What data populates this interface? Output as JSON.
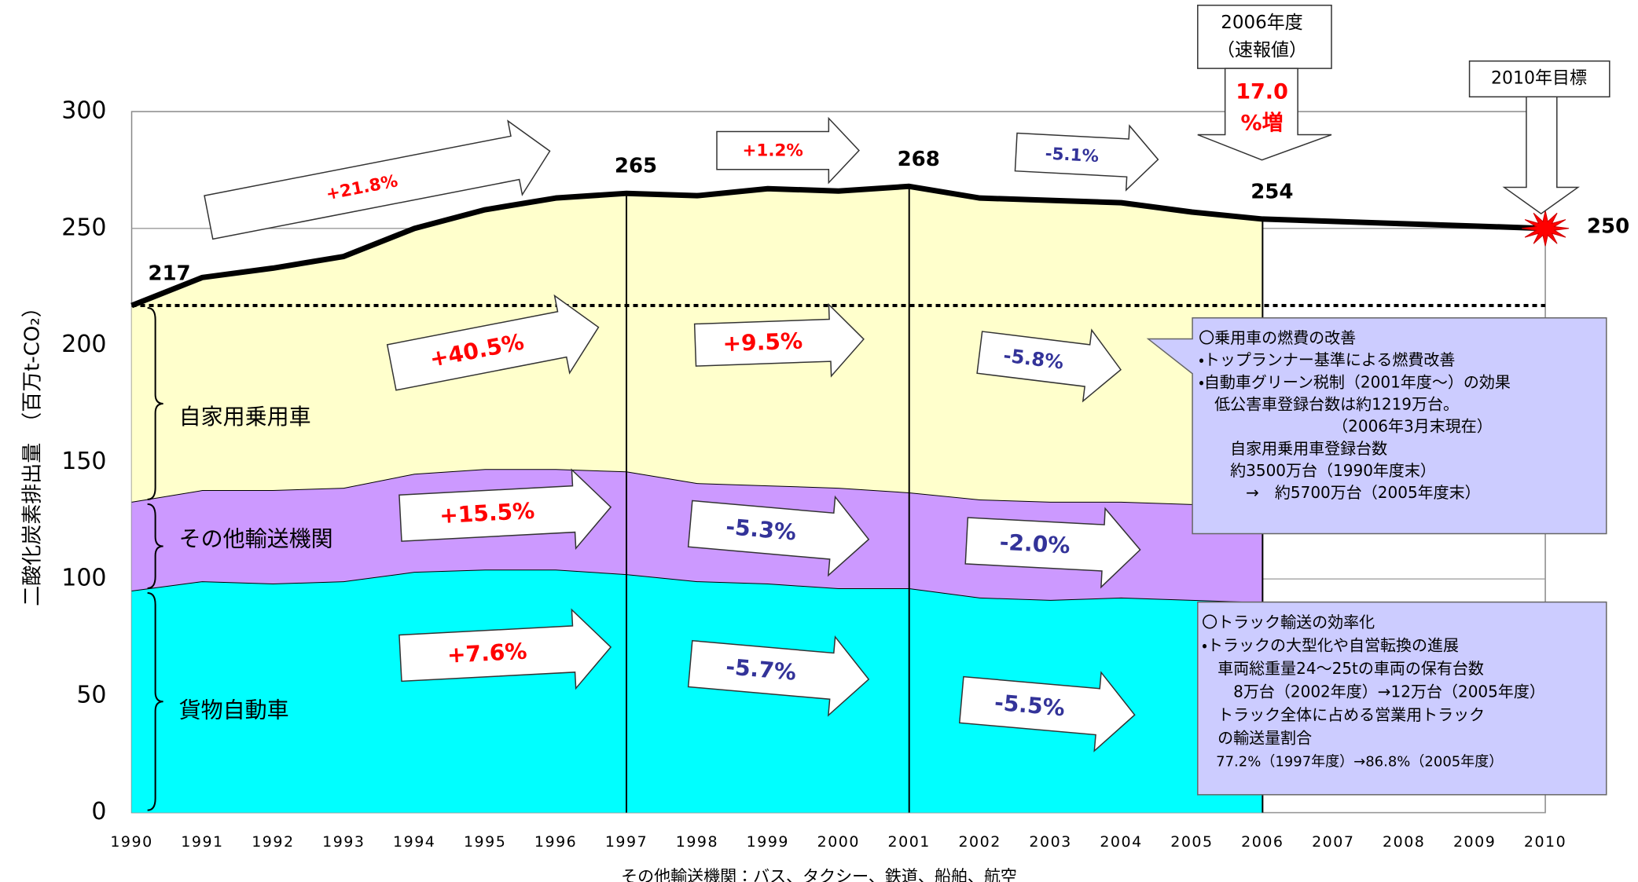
{
  "chart_data": {
    "type": "stacked-area",
    "ylabel": "二酸化炭素排出量　（百万t-CO₂）",
    "xlabel_note": "その他輸送機関：バス、タクシー、鉄道、船舶、航空",
    "x": [
      1990,
      1991,
      1992,
      1993,
      1994,
      1995,
      1996,
      1997,
      1998,
      1999,
      2000,
      2001,
      2002,
      2003,
      2004,
      2005,
      2006,
      2007,
      2008,
      2009,
      2010
    ],
    "xlim": [
      1990,
      2010
    ],
    "xticks": [
      1990,
      1991,
      1992,
      1993,
      1994,
      1995,
      1996,
      1997,
      1998,
      1999,
      2000,
      2001,
      2002,
      2003,
      2004,
      2005,
      2006,
      2007,
      2008,
      2009,
      2010
    ],
    "ylim": [
      0,
      300
    ],
    "yticks": [
      0,
      50,
      100,
      150,
      200,
      250,
      300
    ],
    "grid": true,
    "series": [
      {
        "name": "貨物自動車",
        "color": "#00ffff",
        "values": [
          95,
          99,
          98,
          99,
          103,
          104,
          104,
          102,
          99,
          98,
          96,
          96,
          92,
          91,
          92,
          91,
          90,
          null,
          null,
          null,
          null
        ]
      },
      {
        "name": "その他輸送機関",
        "color": "#cc99ff",
        "values": [
          38,
          39,
          40,
          40,
          42,
          43,
          43,
          44,
          42,
          42,
          43,
          41,
          42,
          42,
          41,
          41,
          41,
          null,
          null,
          null,
          null
        ]
      },
      {
        "name": "自家用乗用車",
        "color": "#ffffcc",
        "values": [
          84,
          91,
          95,
          99,
          105,
          111,
          116,
          119,
          123,
          127,
          127,
          131,
          129,
          129,
          128,
          125,
          123,
          null,
          null,
          null,
          null
        ]
      }
    ],
    "total": {
      "color": "#000000",
      "values": [
        217,
        229,
        233,
        238,
        250,
        258,
        263,
        265,
        264,
        267,
        266,
        268,
        263,
        262,
        261,
        257,
        254,
        253,
        252,
        251,
        250
      ],
      "value_labels": [
        "217",
        null,
        null,
        null,
        null,
        null,
        null,
        "265",
        null,
        null,
        null,
        "268",
        null,
        null,
        null,
        null,
        "254",
        null,
        null,
        null,
        "250"
      ]
    },
    "reference_line": 217,
    "dividers": [
      1997,
      2001,
      2006
    ],
    "annotations": [
      {
        "text": "+21.8%",
        "color": "#ff0000"
      },
      {
        "text": "+1.2%",
        "color": "#ff0000"
      },
      {
        "text": "-5.1%",
        "color": "#333399"
      },
      {
        "text": "+40.5%",
        "color": "#ff0000"
      },
      {
        "text": "+9.5%",
        "color": "#ff0000"
      },
      {
        "text": "-5.8%",
        "color": "#333399"
      },
      {
        "text": "+15.5%",
        "color": "#ff0000"
      },
      {
        "text": "-5.3%",
        "color": "#333399"
      },
      {
        "text": "-2.0%",
        "color": "#333399"
      },
      {
        "text": "+7.6%",
        "color": "#ff0000"
      },
      {
        "text": "-5.7%",
        "color": "#333399"
      },
      {
        "text": "-5.5%",
        "color": "#333399"
      }
    ],
    "callouts": [
      {
        "lines": [
          "2006年度",
          "（速報値）"
        ],
        "highlight": [
          "17.0",
          "%増"
        ]
      },
      {
        "lines": [
          "2010年目標"
        ]
      }
    ],
    "notes": [
      {
        "lines": [
          "〇乗用車の燃費の改善",
          "・トップランナー基準による燃費改善",
          "・自動車グリーン税制（2001年度～）の効果",
          "　低公害車登録台数は約1219万台。",
          "　　　　　　　　　（2006年3月末現在）",
          "　　自家用乗用車登録台数",
          "　　約3500万台（1990年度末）",
          "　　　→　約5700万台（2005年度末）"
        ]
      },
      {
        "lines": [
          "〇トラック輸送の効率化",
          "・トラックの大型化や自営転換の進展",
          "　車両総重量24～25tの車両の保有台数",
          "　　8万台（2002年度）→12万台（2005年度）",
          "　トラック全体に占める営業用トラック",
          "　の輸送量割合",
          "　77.2%（1997年度）→86.8%（2005年度）"
        ]
      }
    ]
  }
}
